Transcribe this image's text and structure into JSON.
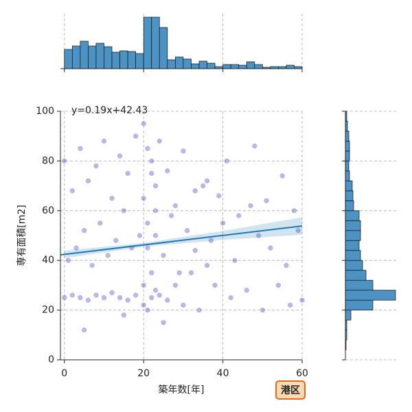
{
  "chart_data": [
    {
      "type": "scatter",
      "xlabel": "築年数[年]",
      "ylabel": "専有面積[m2]",
      "annotation": "港区",
      "color": "#0000aa",
      "x": [
        0,
        2,
        4,
        6,
        8,
        10,
        12,
        14,
        16,
        18,
        20,
        20,
        21,
        22,
        22,
        23,
        24,
        26,
        28,
        30,
        32,
        34,
        36,
        38,
        42,
        46,
        50,
        54,
        57,
        60,
        1,
        3,
        5,
        7,
        9,
        11,
        13,
        15,
        17,
        19,
        20,
        21,
        21,
        22,
        23,
        23,
        25,
        27,
        29,
        31,
        33,
        35,
        37,
        40,
        43,
        47,
        49,
        52,
        56,
        59,
        0,
        2,
        4,
        6,
        8,
        10,
        12,
        14,
        16,
        18,
        20,
        21,
        22,
        23,
        24,
        26,
        28,
        30,
        33,
        36,
        39,
        41,
        44,
        48,
        51,
        55,
        58,
        5,
        15,
        25
      ],
      "y": [
        25,
        26,
        25,
        24,
        26,
        25,
        27,
        25,
        24,
        26,
        22,
        30,
        20,
        25,
        35,
        28,
        26,
        24,
        30,
        22,
        35,
        20,
        38,
        30,
        25,
        28,
        20,
        30,
        22,
        24,
        40,
        45,
        52,
        38,
        55,
        42,
        48,
        60,
        45,
        50,
        65,
        55,
        45,
        75,
        50,
        60,
        42,
        58,
        35,
        52,
        44,
        70,
        48,
        55,
        40,
        62,
        50,
        45,
        38,
        52,
        80,
        68,
        85,
        72,
        78,
        88,
        65,
        82,
        75,
        90,
        95,
        85,
        80,
        70,
        88,
        76,
        62,
        84,
        68,
        72,
        66,
        80,
        58,
        86,
        64,
        74,
        60,
        12,
        18,
        15
      ],
      "xlim": [
        -1,
        60
      ],
      "ylim": [
        0,
        100
      ],
      "xticks": [
        0,
        20,
        40,
        60
      ],
      "yticks": [
        0,
        20,
        40,
        60,
        80,
        100
      ],
      "grid": true,
      "regression": {
        "slope": 0.19,
        "intercept": 42.43,
        "label": "y=0.19x+42.43",
        "color": "#1f77b4",
        "label_color": "#1a1acc",
        "ci": {
          "x": [
            0,
            20,
            40,
            60
          ],
          "halfwidth": [
            1.5,
            0.8,
            1.8,
            3.5
          ]
        }
      }
    },
    {
      "type": "histogram",
      "orientation": "vertical",
      "color": "#4c92c3",
      "bins": [
        0,
        2,
        4,
        6,
        8,
        10,
        12,
        14,
        16,
        18,
        20,
        22,
        24,
        26,
        28,
        30,
        32,
        34,
        36,
        38,
        40,
        42,
        44,
        46,
        48,
        50,
        52,
        54,
        56,
        58,
        60
      ],
      "values": [
        28,
        33,
        40,
        33,
        37,
        32,
        24,
        26,
        25,
        22,
        75,
        75,
        60,
        13,
        17,
        14,
        7,
        11,
        8,
        3,
        6,
        6,
        5,
        10,
        6,
        2,
        3,
        3,
        5,
        3
      ],
      "xlim": [
        -1,
        60
      ],
      "xticks": [
        0,
        20,
        40,
        60
      ],
      "grid": true
    },
    {
      "type": "histogram",
      "orientation": "horizontal",
      "color": "#4c92c3",
      "bins": [
        4,
        8,
        12,
        16,
        20,
        24,
        28,
        32,
        36,
        40,
        44,
        48,
        52,
        56,
        60,
        64,
        68,
        72,
        76,
        80,
        84,
        88,
        92,
        96,
        100
      ],
      "values": [
        1,
        2,
        2,
        8,
        40,
        73,
        40,
        30,
        25,
        22,
        20,
        22,
        22,
        20,
        12,
        11,
        10,
        6,
        5,
        6,
        6,
        5,
        3,
        2
      ],
      "ylim": [
        0,
        100
      ],
      "yticks": [
        0,
        20,
        40,
        60,
        80,
        100
      ],
      "grid": true
    }
  ]
}
